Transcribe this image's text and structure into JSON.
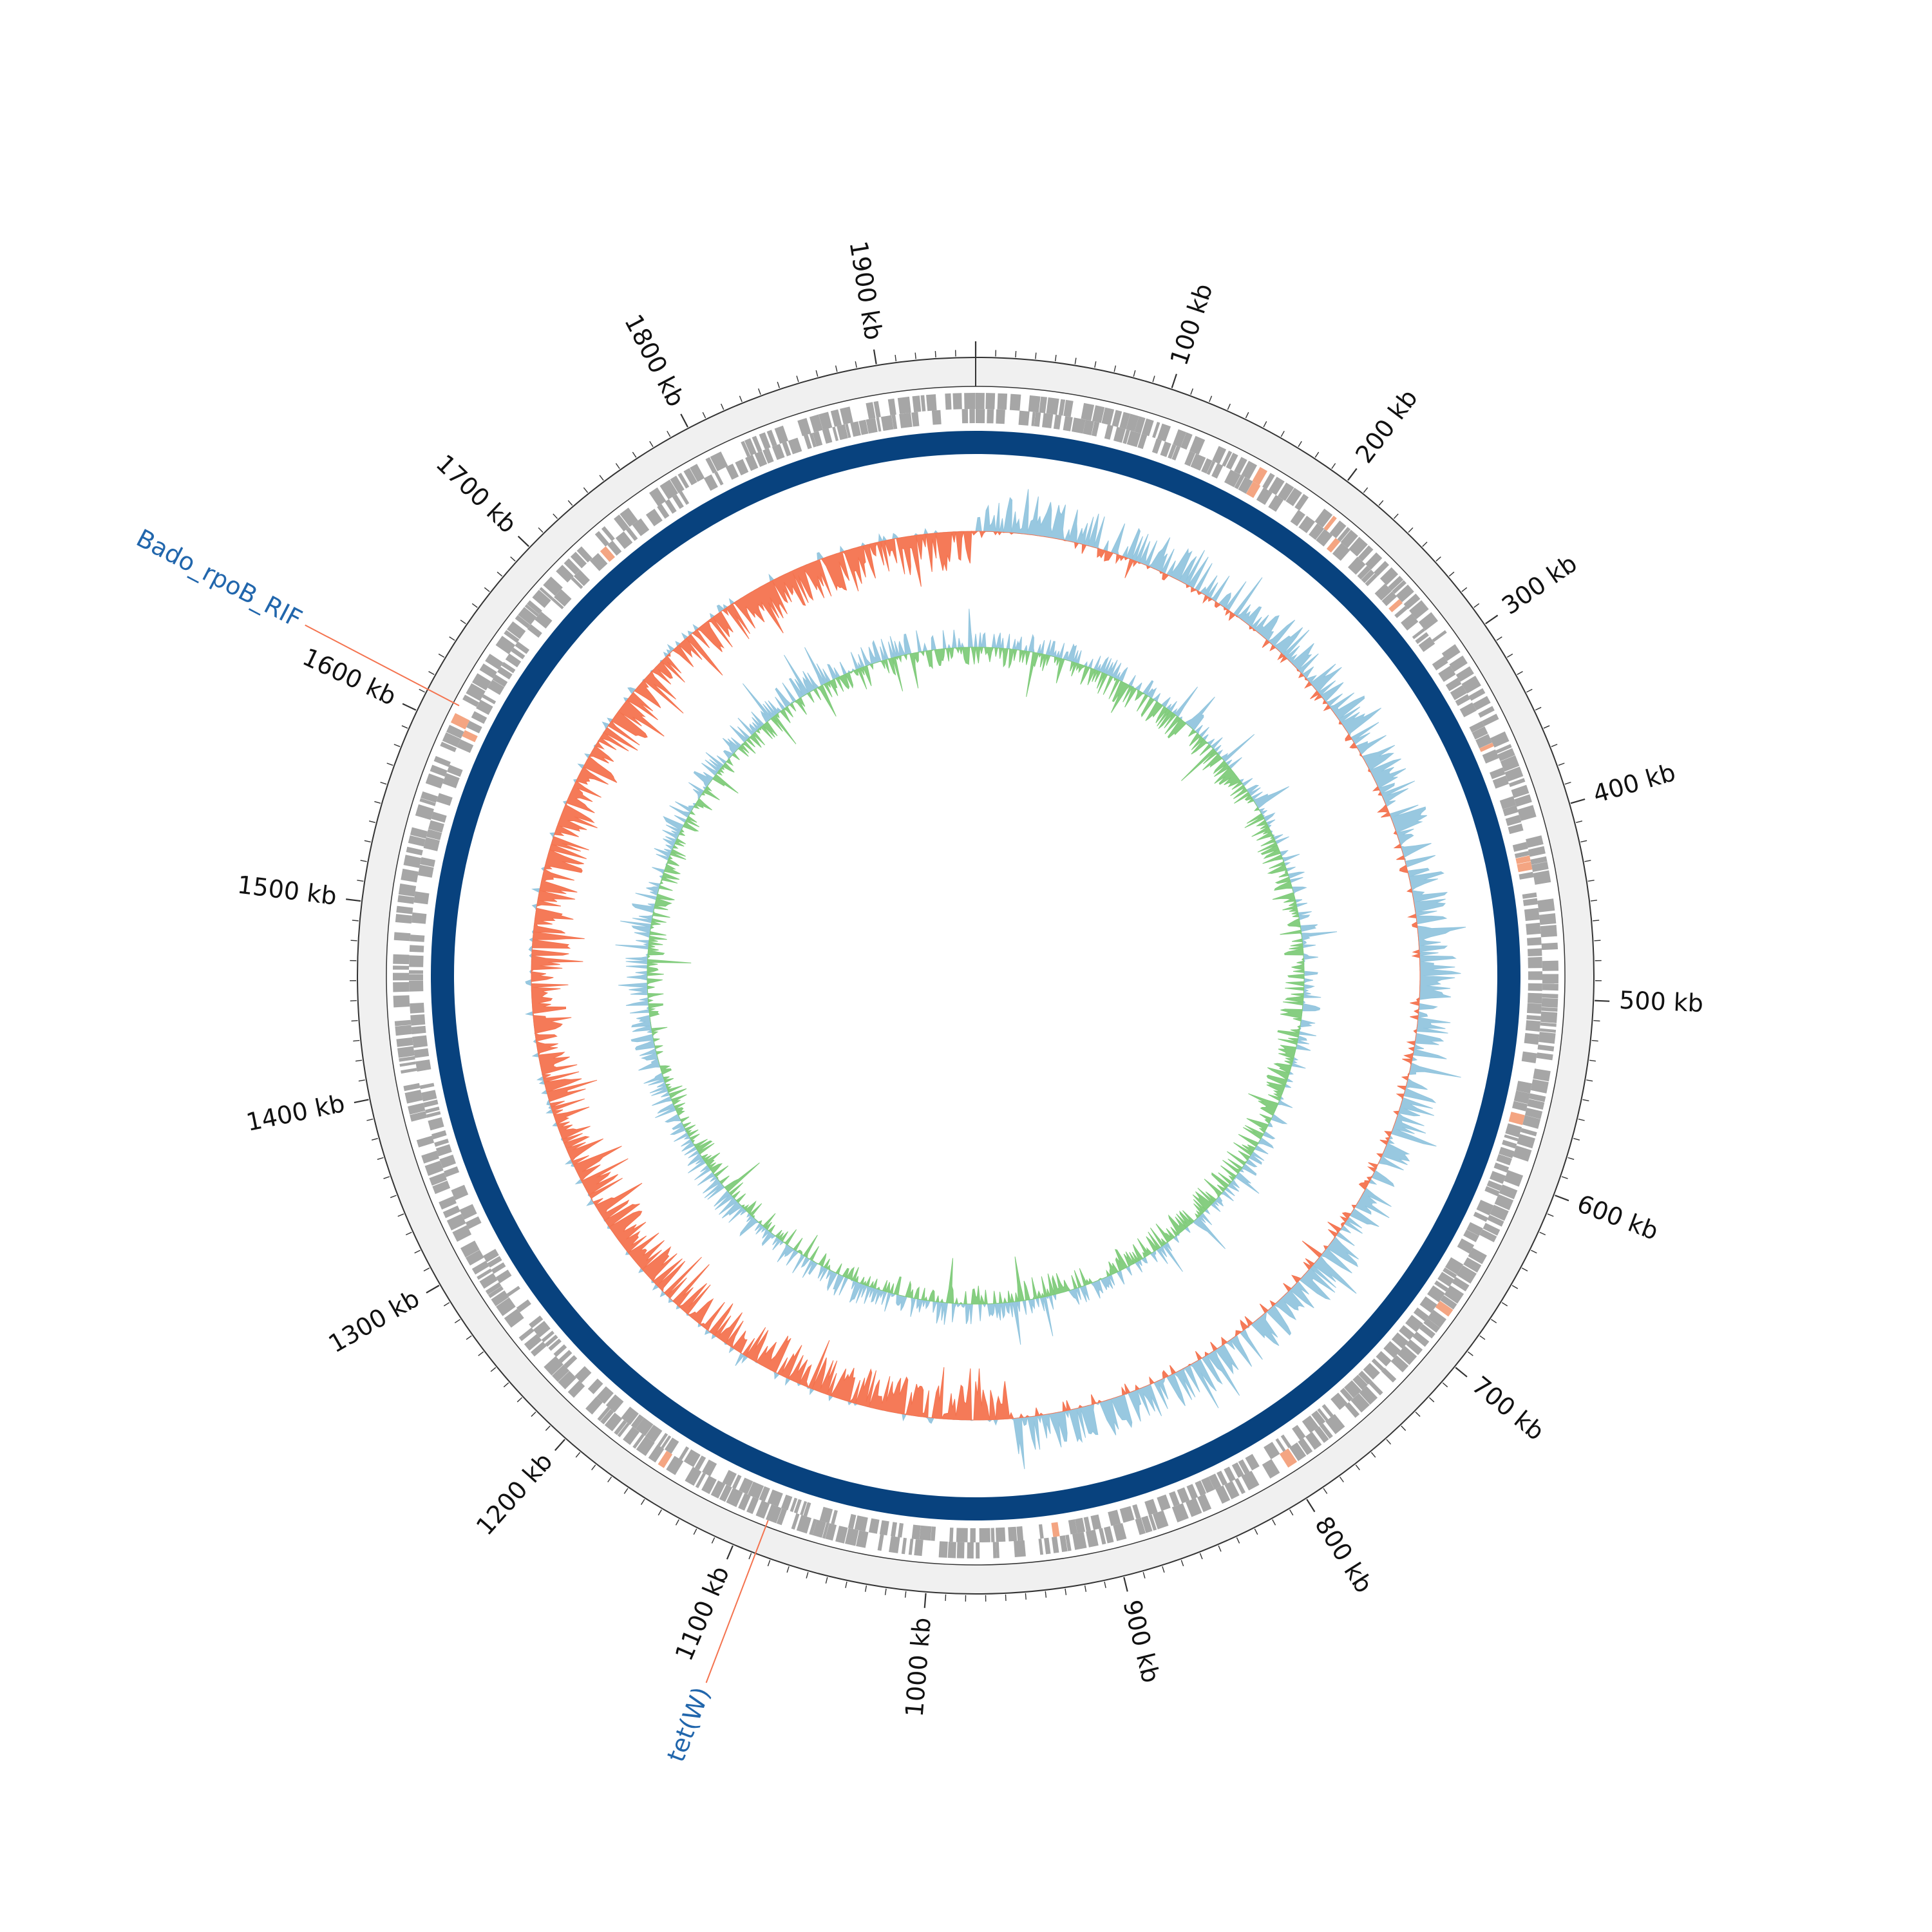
{
  "diagram": {
    "type": "circular-genome-map",
    "genome_length_kb": 1950,
    "tick_labels": [
      "100 kb",
      "200 kb",
      "300 kb",
      "400 kb",
      "500 kb",
      "600 kb",
      "700 kb",
      "800 kb",
      "900 kb",
      "1000 kb",
      "1100 kb",
      "1200 kb",
      "1300 kb",
      "1400 kb",
      "1500 kb",
      "1600 kb",
      "1700 kb",
      "1800 kb",
      "1900 kb"
    ],
    "tick_positions_kb": [
      100,
      200,
      300,
      400,
      500,
      600,
      700,
      800,
      900,
      1000,
      1100,
      1200,
      1300,
      1400,
      1500,
      1600,
      1700,
      1800,
      1900
    ],
    "gene_annotations": [
      {
        "label": "Bado_rpoB_RIF",
        "position_kb": 1612
      },
      {
        "label": "tet(W)",
        "position_kb": 1088
      }
    ],
    "tracks": [
      {
        "name": "ruler",
        "color": "#f0f0f0"
      },
      {
        "name": "cds",
        "color": "#a6a6a6",
        "highlight_color": "#f4a582"
      },
      {
        "name": "contig",
        "color": "#08427e"
      },
      {
        "name": "gc_content",
        "positive_color": "#92c5de",
        "negative_color": "#f4734f"
      },
      {
        "name": "gc_skew",
        "positive_color": "#92c5de",
        "negative_color": "#7fcb7a"
      }
    ],
    "colors": {
      "annotation_label": "#2166ac",
      "annotation_line": "#f4734f",
      "tick_label": "#111111"
    }
  }
}
